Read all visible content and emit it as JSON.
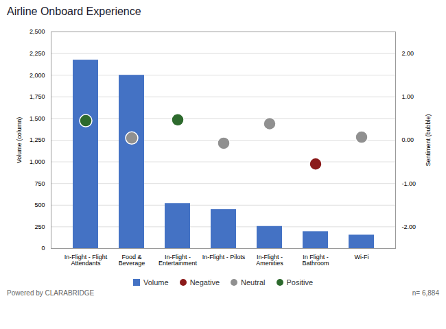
{
  "chart_data": {
    "type": "bar",
    "title": "Airline Onboard Experience",
    "categories": [
      "In-Flight - Flight\nAttendants",
      "Food &\nBeverage",
      "In-Flight -\nEntertainment",
      "In-Flight - Pilots",
      "In-Flight -\nAmenities",
      "In Flight -\nBathroom",
      "Wi-Fi"
    ],
    "ylabel": "Volume (column)",
    "y2label": "Sentiment (bubble)",
    "ylim": [
      0,
      2500
    ],
    "yticks": [
      0,
      250,
      500,
      750,
      {
        "value": 1000,
        "label": "1,000"
      },
      {
        "value": 1250,
        "label": "1,250"
      },
      {
        "value": 1500,
        "label": "1,500"
      },
      {
        "value": 1750,
        "label": "1,750"
      },
      {
        "value": 2000,
        "label": "2,000"
      },
      {
        "value": 2250,
        "label": "2,250"
      },
      {
        "value": 2500,
        "label": "2,500"
      }
    ],
    "y2lim": [
      -2.5,
      2.5
    ],
    "y2ticks": [
      {
        "value": -2,
        "label": "-2.00"
      },
      {
        "value": -1,
        "label": "-1.00"
      },
      {
        "value": 0,
        "label": "0.00"
      },
      {
        "value": 1,
        "label": "1.00"
      },
      {
        "value": 2,
        "label": "2.00"
      }
    ],
    "grid": true,
    "legend": "bottom",
    "series": [
      {
        "name": "Volume",
        "type": "bar",
        "color": "#4472C4",
        "values": [
          2175,
          2000,
          520,
          450,
          255,
          195,
          155
        ]
      },
      {
        "name": "Negative",
        "type": "scatter",
        "axis": "y2",
        "color": "#8b1a1a",
        "values": [
          null,
          null,
          null,
          null,
          null,
          -0.55,
          null
        ]
      },
      {
        "name": "Neutral",
        "type": "scatter",
        "axis": "y2",
        "color": "#909090",
        "values": [
          null,
          0.05,
          null,
          -0.07,
          0.38,
          null,
          0.07
        ]
      },
      {
        "name": "Positive",
        "type": "scatter",
        "axis": "y2",
        "color": "#2d6a2d",
        "values": [
          0.45,
          null,
          0.47,
          null,
          null,
          null,
          null
        ]
      }
    ],
    "annotations": [
      "Powered by CLARABRIDGE",
      "n= 6,884"
    ]
  }
}
